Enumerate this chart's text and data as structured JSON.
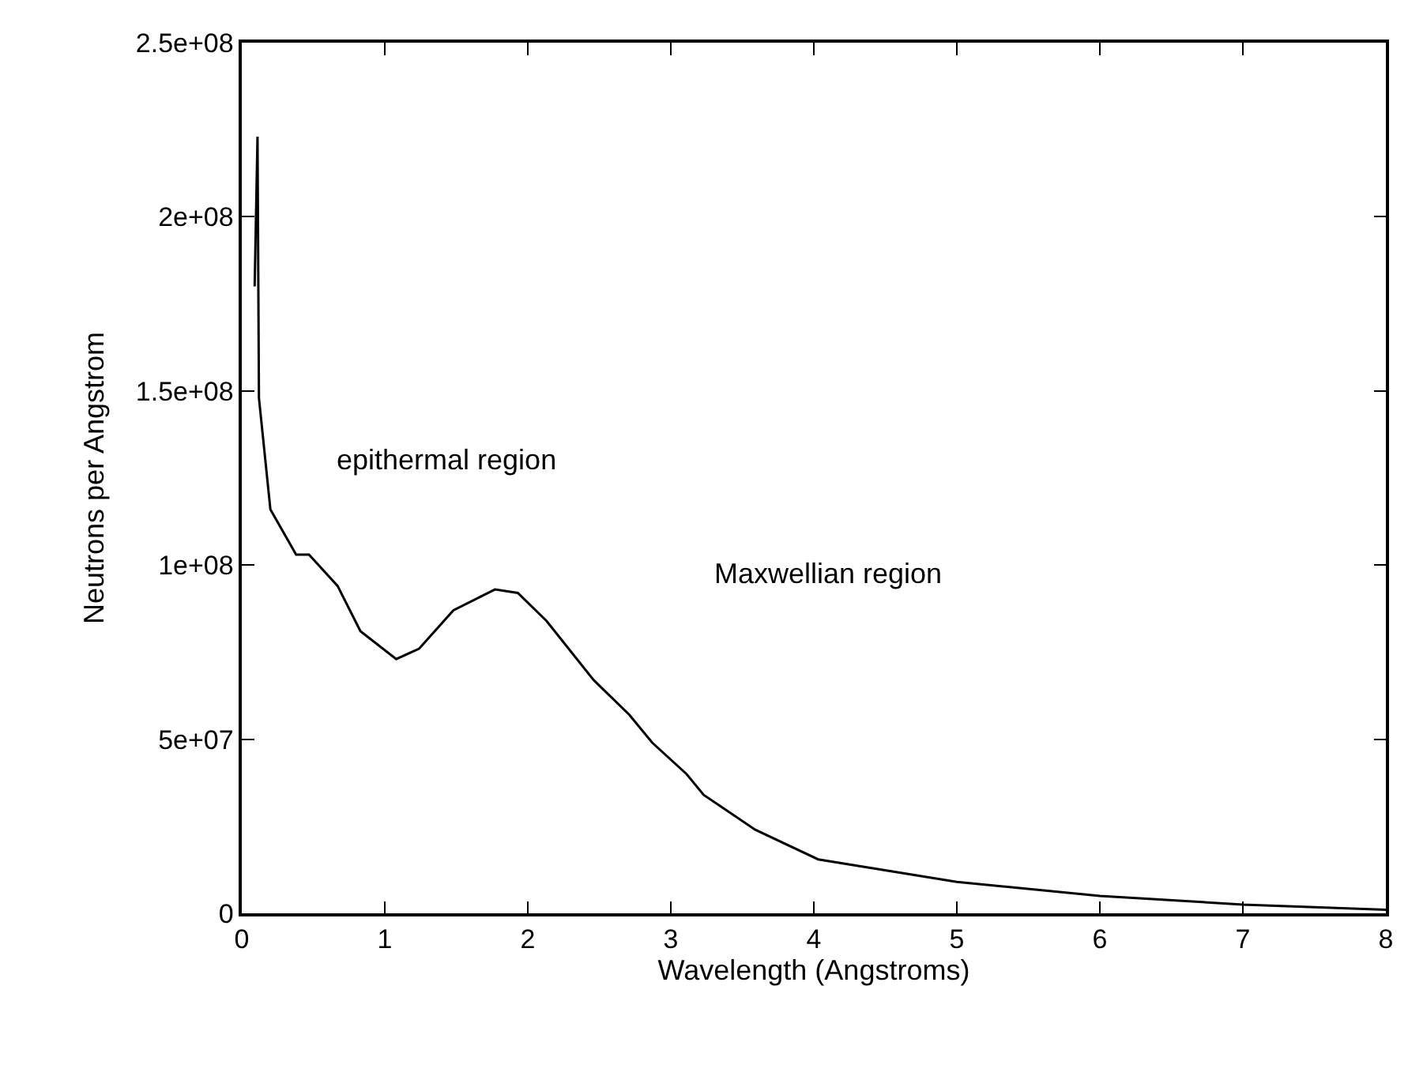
{
  "chart_data": {
    "type": "line",
    "xlabel": "Wavelength (Angstroms)",
    "ylabel": "Neutrons per Angstrom",
    "annotations": [
      "epithermal region",
      "Maxwellian region"
    ],
    "x": [
      0.09,
      0.11,
      0.12,
      0.2,
      0.38,
      0.47,
      0.67,
      0.83,
      1.08,
      1.24,
      1.48,
      1.77,
      1.93,
      2.13,
      2.46,
      2.71,
      2.87,
      3.11,
      3.23,
      3.59,
      4.03,
      5,
      6,
      7,
      8
    ],
    "series": [
      {
        "color": "#000000",
        "values": [
          180000000,
          223000000,
          148000000,
          116000000,
          103000000,
          103000000,
          94000000,
          81000000,
          73000000,
          76000000,
          87000000,
          93000000,
          92000000,
          84000000,
          67000000,
          57000000,
          49000000,
          40000000,
          34000000,
          24000000,
          15500000,
          9000000,
          5000000,
          2500000,
          1000000
        ]
      }
    ],
    "xlim": [
      0,
      8
    ],
    "ylim": [
      0,
      250000000
    ],
    "xticks": [
      0,
      1,
      2,
      3,
      4,
      5,
      6,
      7,
      8
    ],
    "yticks": [
      {
        "value": 0,
        "label": "0"
      },
      {
        "value": 50000000,
        "label": "5e+07"
      },
      {
        "value": 100000000,
        "label": "1e+08"
      },
      {
        "value": 150000000,
        "label": "1.5e+08"
      },
      {
        "value": 200000000,
        "label": "2e+08"
      },
      {
        "value": 250000000,
        "label": "2.5e+08"
      }
    ],
    "marker": "none",
    "line_style": "solid"
  }
}
